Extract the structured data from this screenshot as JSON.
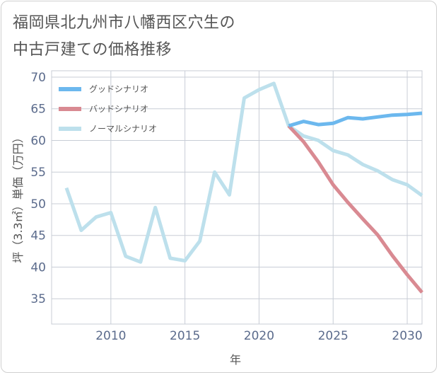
{
  "title_lines": [
    "福岡県北九州市八幡西区穴生の",
    "中古戸建ての価格推移"
  ],
  "chart_data": {
    "type": "line",
    "xlabel": "年",
    "ylabel": "坪（3.3㎡）単価（万円）",
    "xlim": [
      2006,
      2031
    ],
    "ylim": [
      31,
      71
    ],
    "xticks": [
      2010,
      2015,
      2020,
      2025,
      2030
    ],
    "yticks": [
      35,
      40,
      45,
      50,
      55,
      60,
      65,
      70
    ],
    "grid": true,
    "legend_position": "top-left",
    "series": [
      {
        "name": "グッドシナリオ",
        "color": "#6cb8ee",
        "x": [
          2022,
          2023,
          2024,
          2025,
          2026,
          2027,
          2028,
          2029,
          2030,
          2031
        ],
        "y": [
          62.3,
          63.0,
          62.5,
          62.7,
          63.6,
          63.4,
          63.7,
          64.0,
          64.1,
          64.3
        ]
      },
      {
        "name": "バッドシナリオ",
        "color": "#d98a92",
        "x": [
          2022,
          2023,
          2024,
          2025,
          2026,
          2027,
          2028,
          2029,
          2030,
          2031
        ],
        "y": [
          62.3,
          59.8,
          56.6,
          53.0,
          50.2,
          47.6,
          45.1,
          41.8,
          38.8,
          36.0
        ]
      },
      {
        "name": "ノーマルシナリオ",
        "color": "#bde0ec",
        "x": [
          2007,
          2008,
          2009,
          2010,
          2011,
          2012,
          2013,
          2014,
          2015,
          2016,
          2017,
          2018,
          2019,
          2020,
          2021,
          2022,
          2023,
          2024,
          2025,
          2026,
          2027,
          2028,
          2029,
          2030,
          2031
        ],
        "y": [
          52.5,
          45.8,
          47.9,
          48.6,
          41.7,
          40.8,
          49.4,
          41.4,
          41.0,
          44.1,
          55.0,
          51.4,
          66.7,
          68.0,
          69.0,
          62.3,
          60.7,
          60.0,
          58.4,
          57.7,
          56.2,
          55.2,
          53.8,
          53.0,
          51.3
        ]
      }
    ]
  }
}
